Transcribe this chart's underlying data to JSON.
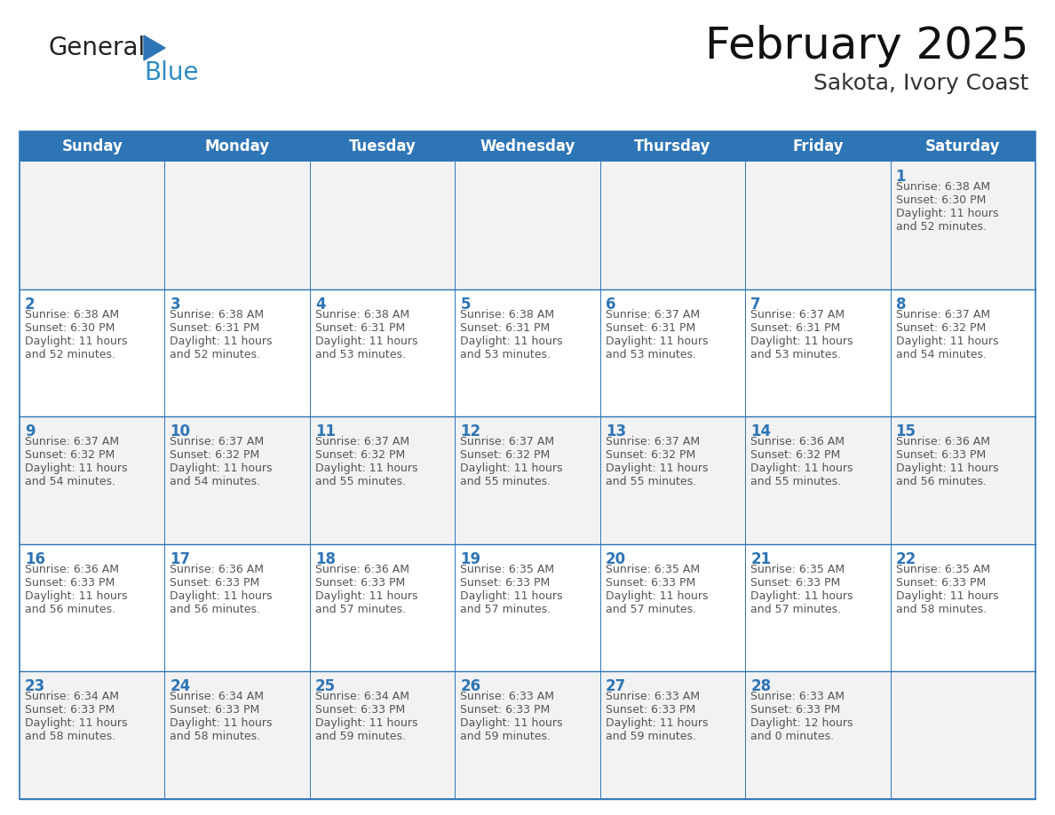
{
  "title": "February 2025",
  "subtitle": "Sakota, Ivory Coast",
  "header_bg": "#2E75B6",
  "header_text_color": "#FFFFFF",
  "cell_border_color": "#2E75B6",
  "day_number_color": "#2E75B6",
  "info_text_color": "#555555",
  "background_color": "#FFFFFF",
  "row1_bg": "#F2F2F2",
  "days_of_week": [
    "Sunday",
    "Monday",
    "Tuesday",
    "Wednesday",
    "Thursday",
    "Friday",
    "Saturday"
  ],
  "calendar_data": [
    [
      null,
      null,
      null,
      null,
      null,
      null,
      {
        "day": 1,
        "sunrise": "6:38 AM",
        "sunset": "6:30 PM",
        "daylight": "11 hours and 52 minutes."
      }
    ],
    [
      {
        "day": 2,
        "sunrise": "6:38 AM",
        "sunset": "6:30 PM",
        "daylight": "11 hours and 52 minutes."
      },
      {
        "day": 3,
        "sunrise": "6:38 AM",
        "sunset": "6:31 PM",
        "daylight": "11 hours and 52 minutes."
      },
      {
        "day": 4,
        "sunrise": "6:38 AM",
        "sunset": "6:31 PM",
        "daylight": "11 hours and 53 minutes."
      },
      {
        "day": 5,
        "sunrise": "6:38 AM",
        "sunset": "6:31 PM",
        "daylight": "11 hours and 53 minutes."
      },
      {
        "day": 6,
        "sunrise": "6:37 AM",
        "sunset": "6:31 PM",
        "daylight": "11 hours and 53 minutes."
      },
      {
        "day": 7,
        "sunrise": "6:37 AM",
        "sunset": "6:31 PM",
        "daylight": "11 hours and 53 minutes."
      },
      {
        "day": 8,
        "sunrise": "6:37 AM",
        "sunset": "6:32 PM",
        "daylight": "11 hours and 54 minutes."
      }
    ],
    [
      {
        "day": 9,
        "sunrise": "6:37 AM",
        "sunset": "6:32 PM",
        "daylight": "11 hours and 54 minutes."
      },
      {
        "day": 10,
        "sunrise": "6:37 AM",
        "sunset": "6:32 PM",
        "daylight": "11 hours and 54 minutes."
      },
      {
        "day": 11,
        "sunrise": "6:37 AM",
        "sunset": "6:32 PM",
        "daylight": "11 hours and 55 minutes."
      },
      {
        "day": 12,
        "sunrise": "6:37 AM",
        "sunset": "6:32 PM",
        "daylight": "11 hours and 55 minutes."
      },
      {
        "day": 13,
        "sunrise": "6:37 AM",
        "sunset": "6:32 PM",
        "daylight": "11 hours and 55 minutes."
      },
      {
        "day": 14,
        "sunrise": "6:36 AM",
        "sunset": "6:32 PM",
        "daylight": "11 hours and 55 minutes."
      },
      {
        "day": 15,
        "sunrise": "6:36 AM",
        "sunset": "6:33 PM",
        "daylight": "11 hours and 56 minutes."
      }
    ],
    [
      {
        "day": 16,
        "sunrise": "6:36 AM",
        "sunset": "6:33 PM",
        "daylight": "11 hours and 56 minutes."
      },
      {
        "day": 17,
        "sunrise": "6:36 AM",
        "sunset": "6:33 PM",
        "daylight": "11 hours and 56 minutes."
      },
      {
        "day": 18,
        "sunrise": "6:36 AM",
        "sunset": "6:33 PM",
        "daylight": "11 hours and 57 minutes."
      },
      {
        "day": 19,
        "sunrise": "6:35 AM",
        "sunset": "6:33 PM",
        "daylight": "11 hours and 57 minutes."
      },
      {
        "day": 20,
        "sunrise": "6:35 AM",
        "sunset": "6:33 PM",
        "daylight": "11 hours and 57 minutes."
      },
      {
        "day": 21,
        "sunrise": "6:35 AM",
        "sunset": "6:33 PM",
        "daylight": "11 hours and 57 minutes."
      },
      {
        "day": 22,
        "sunrise": "6:35 AM",
        "sunset": "6:33 PM",
        "daylight": "11 hours and 58 minutes."
      }
    ],
    [
      {
        "day": 23,
        "sunrise": "6:34 AM",
        "sunset": "6:33 PM",
        "daylight": "11 hours and 58 minutes."
      },
      {
        "day": 24,
        "sunrise": "6:34 AM",
        "sunset": "6:33 PM",
        "daylight": "11 hours and 58 minutes."
      },
      {
        "day": 25,
        "sunrise": "6:34 AM",
        "sunset": "6:33 PM",
        "daylight": "11 hours and 59 minutes."
      },
      {
        "day": 26,
        "sunrise": "6:33 AM",
        "sunset": "6:33 PM",
        "daylight": "11 hours and 59 minutes."
      },
      {
        "day": 27,
        "sunrise": "6:33 AM",
        "sunset": "6:33 PM",
        "daylight": "11 hours and 59 minutes."
      },
      {
        "day": 28,
        "sunrise": "6:33 AM",
        "sunset": "6:33 PM",
        "daylight": "12 hours and 0 minutes."
      },
      null
    ]
  ],
  "logo_text1": "General",
  "logo_text2": "Blue",
  "logo_text1_color": "#222222",
  "logo_text2_color": "#2E8BC0",
  "logo_triangle_color": "#2E75B6",
  "title_fontsize": 36,
  "subtitle_fontsize": 18,
  "header_fontsize": 12,
  "day_num_fontsize": 12,
  "info_fontsize": 9,
  "logo_fontsize1": 20,
  "logo_fontsize2": 20
}
